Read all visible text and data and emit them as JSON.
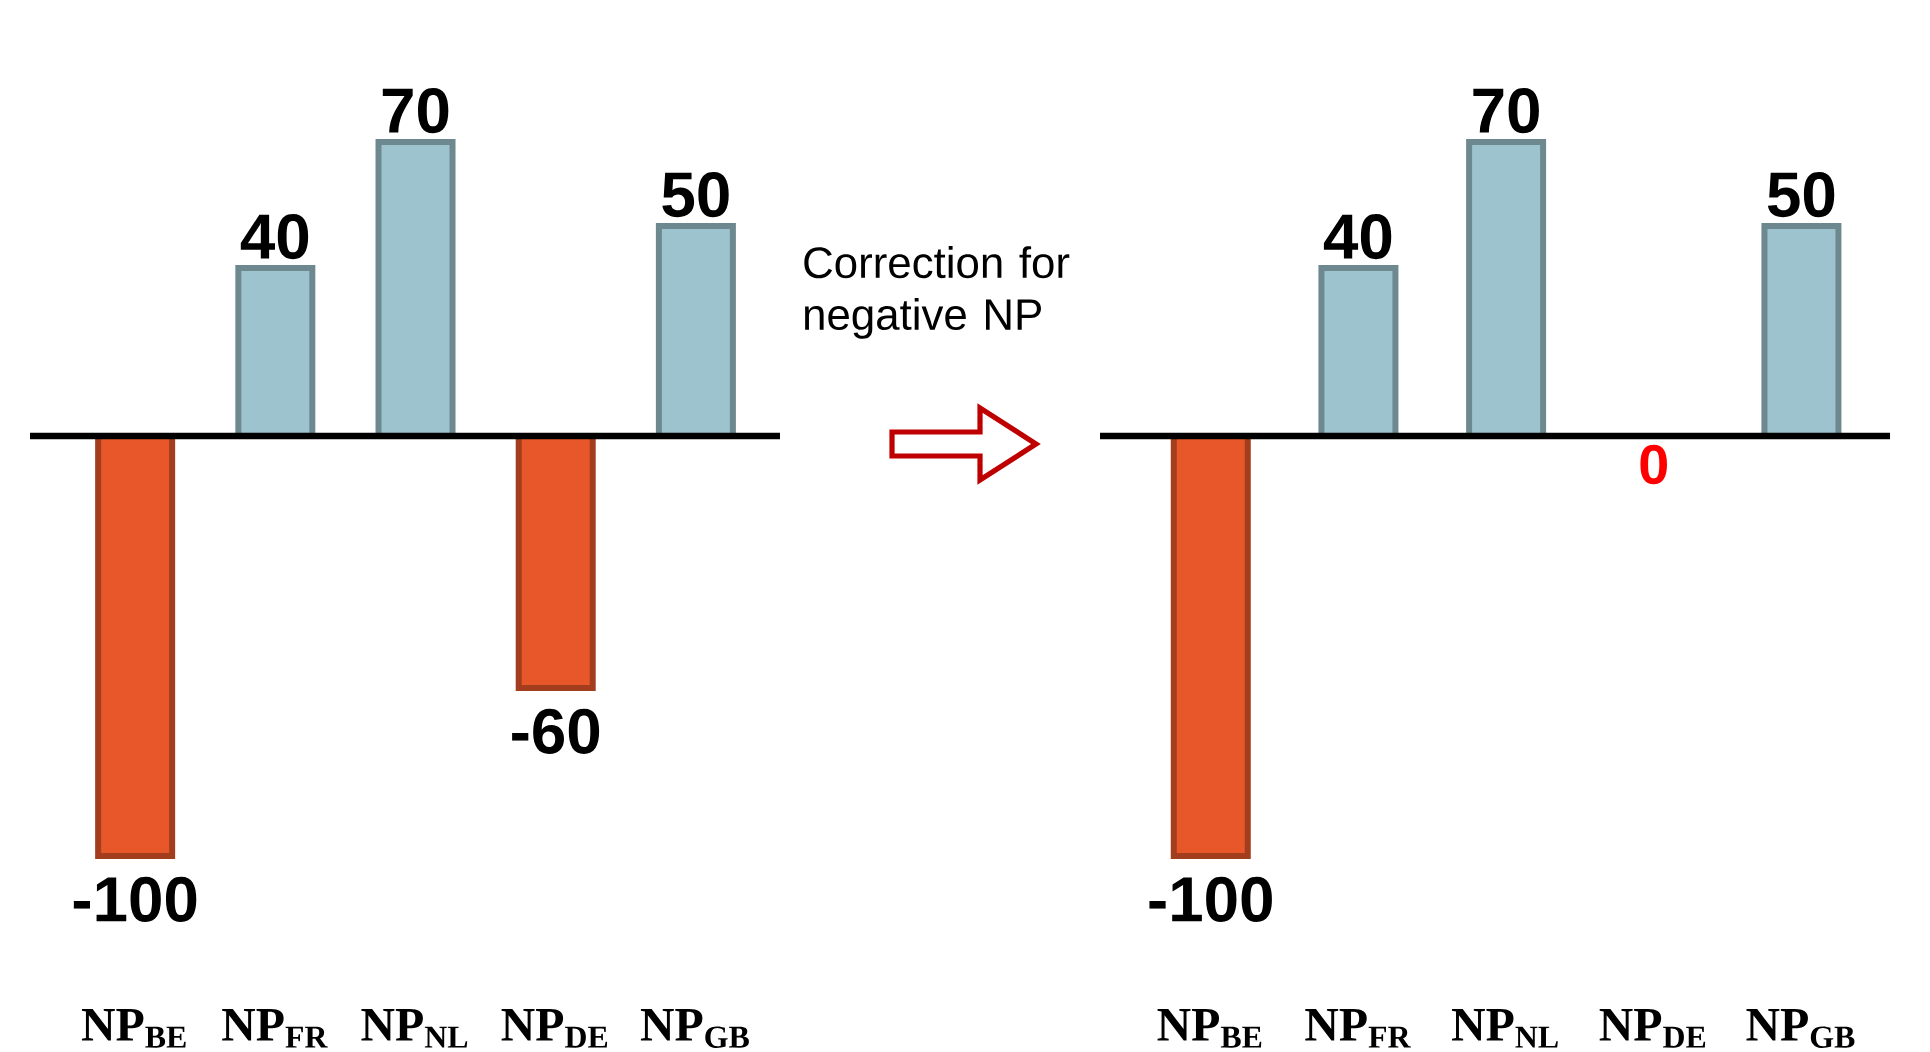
{
  "chart_data": [
    {
      "type": "bar",
      "categories": [
        "NP$_{BE}$",
        "NP$_{FR}$",
        "NP$_{NL}$",
        "NP$_{DE}$",
        "NP$_{GB}$"
      ],
      "values": [
        -100,
        40,
        70,
        -60,
        50
      ],
      "colors": [
        "#e8572a",
        "#9dc3ce",
        "#9dc3ce",
        "#e8572a",
        "#9dc3ce"
      ],
      "data_labels": true,
      "annotations": [
        "Correction for negative NP"
      ]
    },
    {
      "type": "bar",
      "categories": [
        "NP$_{BE}$",
        "NP$_{FR}$",
        "NP$_{NL}$",
        "NP$_{DE}$",
        "NP$_{GB}$"
      ],
      "values": [
        -100,
        40,
        70,
        0,
        50
      ],
      "colors": [
        "#e8572a",
        "#9dc3ce",
        "#9dc3ce",
        "#e8572a",
        "#9dc3ce"
      ],
      "data_labels": true
    }
  ]
}
